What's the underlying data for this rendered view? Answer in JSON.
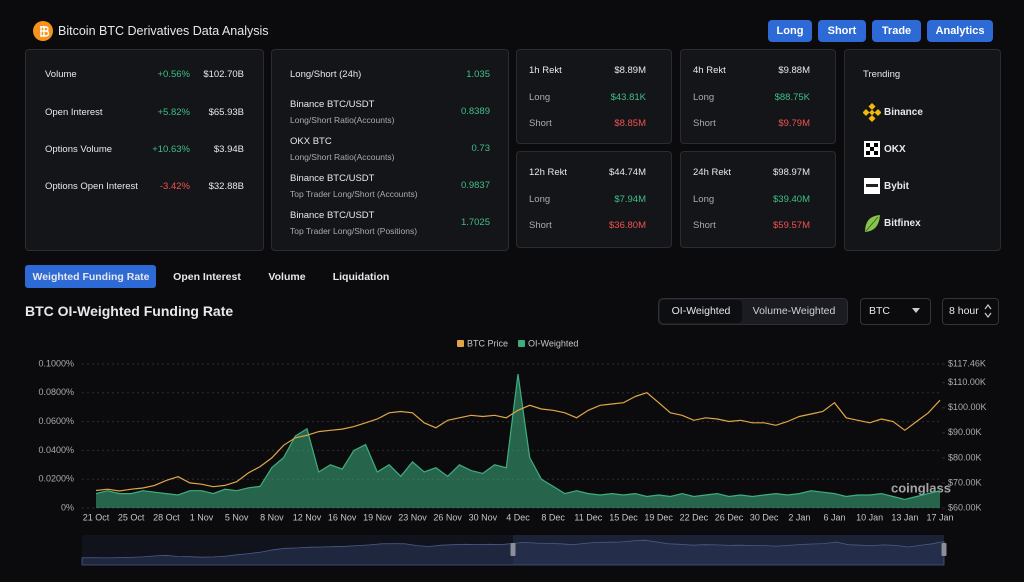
{
  "header": {
    "title": "Bitcoin BTC Derivatives Data Analysis",
    "buttons": [
      "Long",
      "Short",
      "Trade",
      "Analytics"
    ]
  },
  "market_stats": [
    {
      "label": "Volume",
      "change": "+0.56%",
      "value": "$102.70B"
    },
    {
      "label": "Open Interest",
      "change": "+5.82%",
      "value": "$65.93B"
    },
    {
      "label": "Options Volume",
      "change": "+10.63%",
      "value": "$3.94B"
    },
    {
      "label": "Options Open Interest",
      "change": "-3.42%",
      "value": "$32.88B"
    }
  ],
  "ratios": [
    {
      "exchange": "Long/Short (24h)",
      "value": "1.035"
    },
    {
      "exchange": "Binance BTC/USDT",
      "metric": "Long/Short Ratio(Accounts)",
      "value": "0.8389"
    },
    {
      "exchange": "OKX BTC",
      "metric": "Long/Short Ratio(Accounts)",
      "value": "0.73"
    },
    {
      "exchange": "Binance BTC/USDT",
      "metric": "Top Trader Long/Short (Accounts)",
      "value": "0.9837"
    },
    {
      "exchange": "Binance BTC/USDT",
      "metric": "Top Trader Long/Short (Positions)",
      "value": "1.7025"
    }
  ],
  "rekt": [
    [
      {
        "label": "1h Rekt",
        "value": "$8.89M"
      },
      {
        "label": "Long",
        "value": "$43.81K"
      },
      {
        "label": "Short",
        "value": "$8.85M"
      }
    ],
    [
      {
        "label": "4h Rekt",
        "value": "$9.88M"
      },
      {
        "label": "Long",
        "value": "$88.75K"
      },
      {
        "label": "Short",
        "value": "$9.79M"
      }
    ],
    [
      {
        "label": "12h Rekt",
        "value": "$44.74M"
      },
      {
        "label": "Long",
        "value": "$7.94M"
      },
      {
        "label": "Short",
        "value": "$36.80M"
      }
    ],
    [
      {
        "label": "24h Rekt",
        "value": "$98.97M"
      },
      {
        "label": "Long",
        "value": "$39.40M"
      },
      {
        "label": "Short",
        "value": "$59.57M"
      }
    ]
  ],
  "trending": {
    "title": "Trending",
    "items": [
      "Binance",
      "OKX",
      "Bybit",
      "Bitfinex"
    ]
  },
  "tabs": [
    "Weighted Funding Rate",
    "Open Interest",
    "Volume",
    "Liquidation"
  ],
  "section_title": "BTC OI-Weighted Funding Rate",
  "toggle": [
    "OI-Weighted",
    "Volume-Weighted"
  ],
  "coin_select": "BTC",
  "interval_select": "8 hour",
  "watermark": "coinglass",
  "chart_data": {
    "type": "line",
    "categories": [
      "21 Oct",
      null,
      null,
      "25 Oct",
      null,
      null,
      "28 Oct",
      null,
      null,
      "1 Nov",
      null,
      null,
      "5 Nov",
      null,
      null,
      "8 Nov",
      null,
      null,
      "12 Nov",
      null,
      null,
      "16 Nov",
      null,
      null,
      "19 Nov",
      null,
      null,
      "23 Nov",
      null,
      null,
      "26 Nov",
      null,
      null,
      "30 Nov",
      null,
      null,
      "4 Dec",
      null,
      null,
      "8 Dec",
      null,
      null,
      "11 Dec",
      null,
      null,
      "15 Dec",
      null,
      null,
      "19 Dec",
      null,
      null,
      "22 Dec",
      null,
      null,
      "26 Dec",
      null,
      null,
      "30 Dec",
      null,
      null,
      "2 Jan",
      null,
      null,
      "6 Jan",
      null,
      null,
      "10 Jan",
      null,
      null,
      "13 Jan",
      null,
      null,
      "17 Jan"
    ],
    "series": [
      {
        "name": "BTC Price",
        "color": "#e0a645",
        "axis": "y2",
        "values": [
          67000,
          67500,
          66800,
          67500,
          68000,
          69000,
          71000,
          72500,
          70000,
          69500,
          68500,
          69000,
          70500,
          74000,
          76500,
          80000,
          85000,
          88000,
          89000,
          90500,
          91000,
          91500,
          92500,
          94000,
          95500,
          98000,
          98500,
          98000,
          94000,
          92000,
          95000,
          96000,
          97000,
          96500,
          97000,
          96000,
          99000,
          101000,
          99500,
          99000,
          98000,
          96000,
          99000,
          101000,
          101500,
          102000,
          104500,
          106000,
          102000,
          98000,
          97000,
          95000,
          96000,
          95500,
          94500,
          95000,
          94000,
          94000,
          93000,
          94500,
          96500,
          97500,
          98500,
          102000,
          96000,
          95000,
          94000,
          95500,
          94500,
          91000,
          94500,
          98000,
          103000
        ]
      },
      {
        "name": "OI-Weighted",
        "color": "#3fae7f",
        "values": [
          0.01,
          0.012,
          0.01,
          0.01,
          0.012,
          0.011,
          0.01,
          0.009,
          0.012,
          0.012,
          0.01,
          0.013,
          0.012,
          0.014,
          0.015,
          0.028,
          0.035,
          0.05,
          0.055,
          0.025,
          0.03,
          0.027,
          0.04,
          0.044,
          0.025,
          0.03,
          0.022,
          0.032,
          0.025,
          0.028,
          0.022,
          0.03,
          0.026,
          0.024,
          0.03,
          0.028,
          0.093,
          0.035,
          0.02,
          0.015,
          0.01,
          0.012,
          0.01,
          0.009,
          0.01,
          0.009,
          0.01,
          0.008,
          0.009,
          0.008,
          0.01,
          0.008,
          0.009,
          0.01,
          0.008,
          0.009,
          0.008,
          0.009,
          0.01,
          0.009,
          0.01,
          0.012,
          0.011,
          0.01,
          0.008,
          0.009,
          0.009,
          0.01,
          0.008,
          0.006,
          0.008,
          0.01,
          0.012
        ]
      }
    ],
    "ylim": [
      0,
      0.1
    ],
    "yticks": [
      {
        "value": 0,
        "label": "0%"
      },
      {
        "value": 0.02,
        "label": "0.0200%"
      },
      {
        "value": 0.04,
        "label": "0.0400%"
      },
      {
        "value": 0.06,
        "label": "0.0600%"
      },
      {
        "value": 0.08,
        "label": "0.0800%"
      },
      {
        "value": 0.1,
        "label": "0.1000%"
      }
    ],
    "y2lim": [
      60000,
      117460
    ],
    "y2ticks": [
      {
        "value": 60000,
        "label": "$60.00K"
      },
      {
        "value": 70000,
        "label": "$70.00K"
      },
      {
        "value": 80000,
        "label": "$80.00K"
      },
      {
        "value": 90000,
        "label": "$90.00K"
      },
      {
        "value": 100000,
        "label": "$100.00K"
      },
      {
        "value": 110000,
        "label": "$110.00K"
      },
      {
        "value": 117460,
        "label": "$117.46K"
      }
    ],
    "grid": true,
    "legend": "top"
  }
}
